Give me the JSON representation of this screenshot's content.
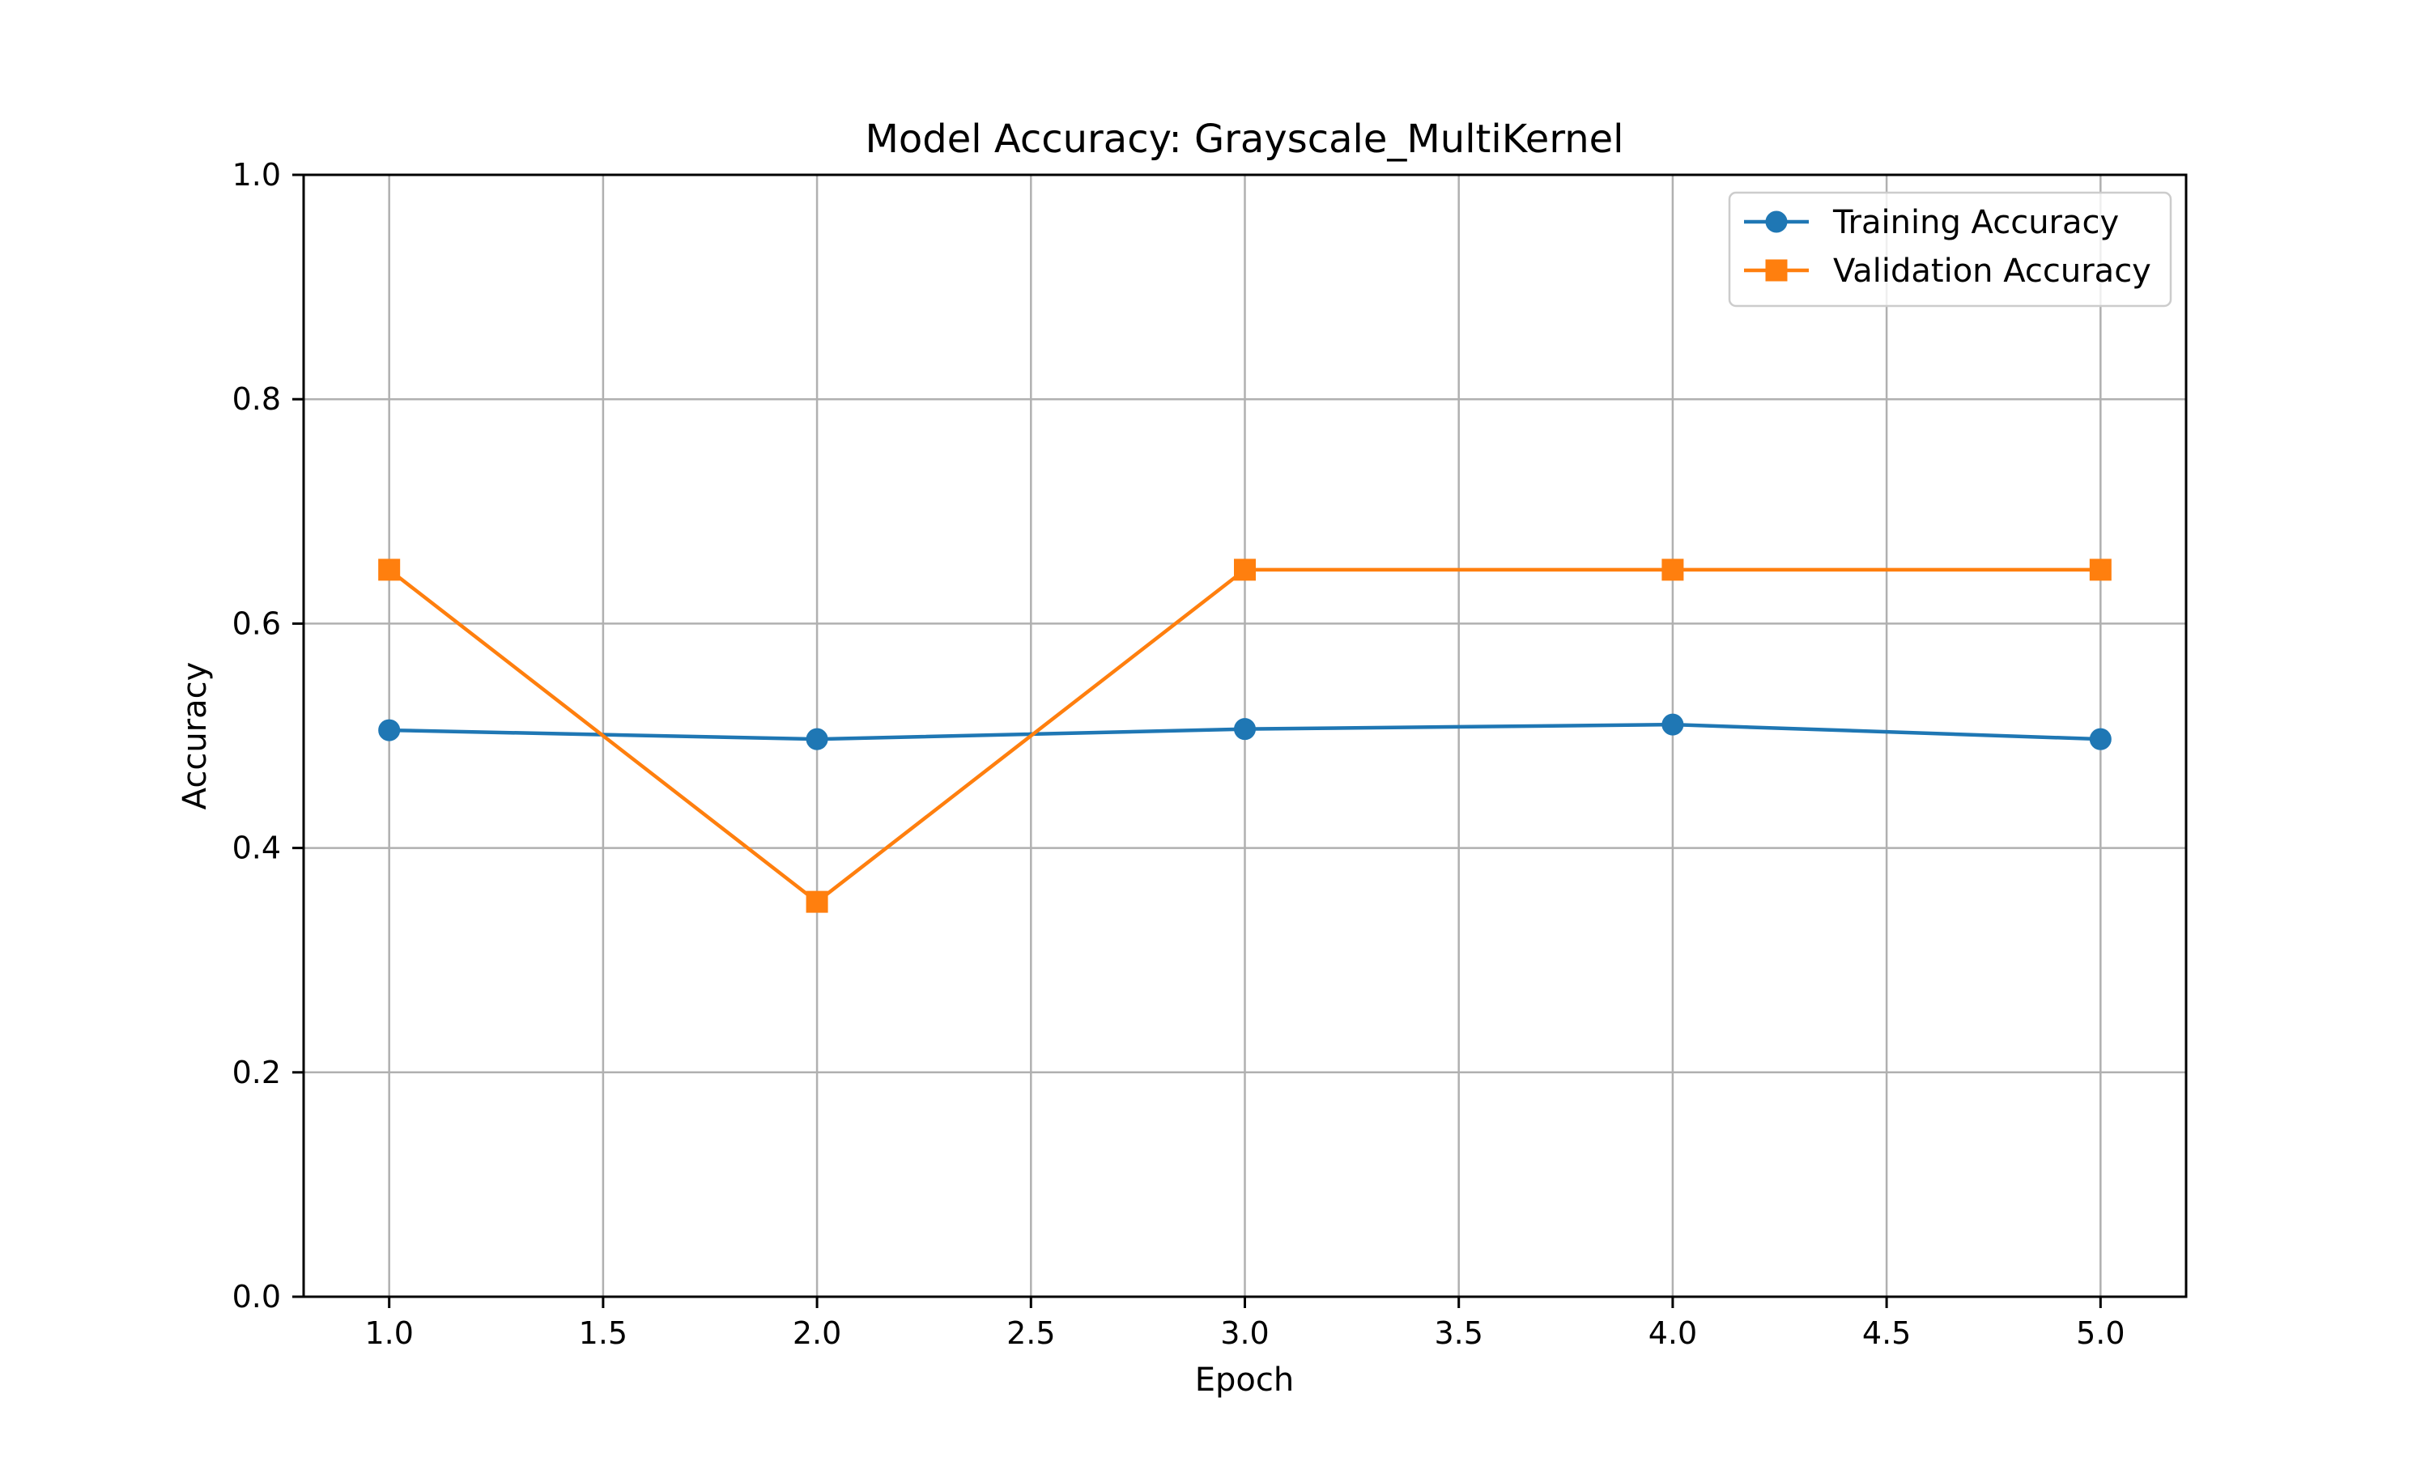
{
  "chart_data": {
    "type": "line",
    "title": "Model Accuracy: Grayscale_MultiKernel",
    "xlabel": "Epoch",
    "ylabel": "Accuracy",
    "xlim": [
      0.8,
      5.2
    ],
    "ylim": [
      0.0,
      1.0
    ],
    "x_ticks": [
      1.0,
      1.5,
      2.0,
      2.5,
      3.0,
      3.5,
      4.0,
      4.5,
      5.0
    ],
    "x_tick_labels": [
      "1.0",
      "1.5",
      "2.0",
      "2.5",
      "3.0",
      "3.5",
      "4.0",
      "4.5",
      "5.0"
    ],
    "y_ticks": [
      0.0,
      0.2,
      0.4,
      0.6,
      0.8,
      1.0
    ],
    "y_tick_labels": [
      "0.0",
      "0.2",
      "0.4",
      "0.6",
      "0.8",
      "1.0"
    ],
    "grid": true,
    "legend_position": "top-right",
    "x": [
      1,
      2,
      3,
      4,
      5
    ],
    "series": [
      {
        "name": "Training Accuracy",
        "values": [
          0.505,
          0.497,
          0.506,
          0.51,
          0.497
        ],
        "color": "#1f77b4",
        "marker": "circle"
      },
      {
        "name": "Validation Accuracy",
        "values": [
          0.648,
          0.352,
          0.648,
          0.648,
          0.648
        ],
        "color": "#ff7f0e",
        "marker": "square"
      }
    ]
  }
}
